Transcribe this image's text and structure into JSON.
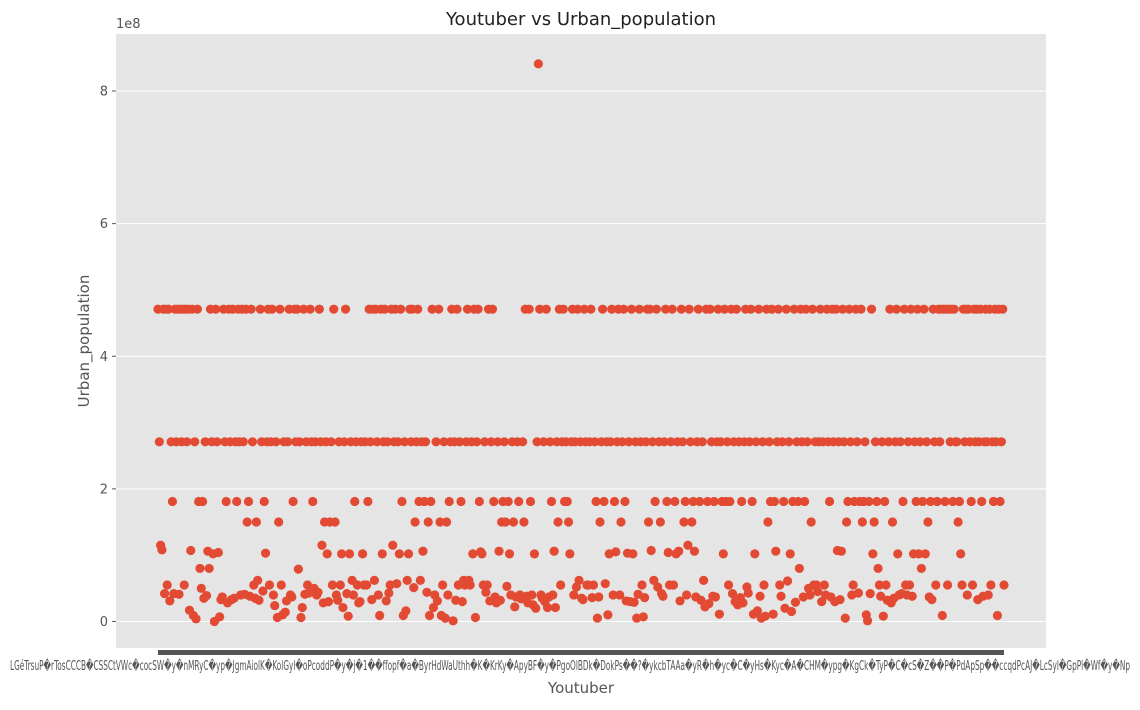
{
  "chart_data": {
    "type": "scatter",
    "title": "Youtuber vs Urban_population",
    "xlabel": "Youtuber",
    "ylabel": "Urban_population",
    "y_offset_label": "1e8",
    "y_scale_factor": 100000000,
    "ylim": [
      -40000000,
      886000000
    ],
    "yticks": [
      0,
      200000000,
      400000000,
      600000000,
      800000000
    ],
    "ytick_labels": [
      "0",
      "2",
      "4",
      "6",
      "8"
    ],
    "x_count": 995,
    "xtick_text": "LGéTrsuP�rTosCCCB�CSSCtVWc�cocSW�y�nMRyC�yp�JgmAiolK�KolGyl�oPcoddP�y�j�1��ffopf�a�ByrHdWaUthh�K�KrKy�ApyBF�y�PgoOlBDk�DokPs��?�ykcbTAAa�yR�h�yc�C�yHs�Kyc�A�CHM�ypg�KgCk�TyP�C�cS�Z��P�PdApSp��ccqdPcAJ�LcSyl�GpPl�Wf�y�Np",
    "grid": true,
    "color": "#E24A33",
    "y_values": [
      471000000,
      271000000,
      115000000,
      108000000,
      471000000,
      42000000,
      471000000,
      55000000,
      471000000,
      31000000,
      271000000,
      181000000,
      42000000,
      471000000,
      271000000,
      471000000,
      41000000,
      471000000,
      271000000,
      471000000,
      55000000,
      471000000,
      271000000,
      471000000,
      17000000,
      107000000,
      471000000,
      9000000,
      271000000,
      4000000,
      471000000,
      181000000,
      80000000,
      50000000,
      181000000,
      35000000,
      271000000,
      39000000,
      106000000,
      80000000,
      471000000,
      271000000,
      102000000,
      0,
      471000000,
      271000000,
      104000000,
      7000000,
      33000000,
      37000000,
      471000000,
      271000000,
      181000000,
      28000000,
      471000000,
      271000000,
      33000000,
      471000000,
      35000000,
      271000000,
      181000000,
      471000000,
      271000000,
      40000000,
      471000000,
      271000000,
      41000000,
      471000000,
      150000000,
      181000000,
      38000000,
      471000000,
      271000000,
      55000000,
      35000000,
      150000000,
      62000000,
      32000000,
      471000000,
      271000000,
      46000000,
      181000000,
      103000000,
      271000000,
      471000000,
      55000000,
      271000000,
      471000000,
      40000000,
      24000000,
      271000000,
      6000000,
      150000000,
      471000000,
      55000000,
      10000000,
      271000000,
      14000000,
      31000000,
      271000000,
      471000000,
      40000000,
      37000000,
      181000000,
      471000000,
      271000000,
      471000000,
      79000000,
      271000000,
      6000000,
      21000000,
      471000000,
      41000000,
      271000000,
      55000000,
      43000000,
      471000000,
      271000000,
      181000000,
      50000000,
      271000000,
      40000000,
      44000000,
      471000000,
      271000000,
      115000000,
      28000000,
      150000000,
      271000000,
      102000000,
      30000000,
      150000000,
      271000000,
      55000000,
      471000000,
      150000000,
      40000000,
      32000000,
      271000000,
      55000000,
      102000000,
      21000000,
      271000000,
      471000000,
      42000000,
      8000000,
      102000000,
      271000000,
      62000000,
      40000000,
      181000000,
      271000000,
      55000000,
      28000000,
      30000000,
      271000000,
      102000000,
      55000000,
      271000000,
      55000000,
      181000000,
      471000000,
      271000000,
      33000000,
      471000000,
      62000000,
      471000000,
      271000000,
      40000000,
      9000000,
      471000000,
      102000000,
      271000000,
      471000000,
      31000000,
      271000000,
      43000000,
      55000000,
      471000000,
      115000000,
      271000000,
      471000000,
      57000000,
      271000000,
      102000000,
      471000000,
      181000000,
      9000000,
      271000000,
      16000000,
      62000000,
      102000000,
      471000000,
      271000000,
      471000000,
      51000000,
      150000000,
      271000000,
      471000000,
      181000000,
      62000000,
      271000000,
      106000000,
      181000000,
      271000000,
      44000000,
      150000000,
      9000000,
      181000000,
      471000000,
      21000000,
      40000000,
      271000000,
      31000000,
      471000000,
      150000000,
      9000000,
      55000000,
      271000000,
      5000000,
      150000000,
      40000000,
      181000000,
      271000000,
      471000000,
      1000000,
      271000000,
      32000000,
      471000000,
      55000000,
      271000000,
      181000000,
      30000000,
      62000000,
      55000000,
      271000000,
      471000000,
      62000000,
      55000000,
      271000000,
      102000000,
      471000000,
      6000000,
      271000000,
      471000000,
      181000000,
      105000000,
      102000000,
      55000000,
      271000000,
      44000000,
      55000000,
      471000000,
      31000000,
      271000000,
      471000000,
      181000000,
      37000000,
      28000000,
      271000000,
      106000000,
      32000000,
      150000000,
      181000000,
      271000000,
      150000000,
      53000000,
      181000000,
      102000000,
      40000000,
      271000000,
      150000000,
      22000000,
      37000000,
      271000000,
      181000000,
      40000000,
      34000000,
      271000000,
      150000000,
      471000000,
      38000000,
      28000000,
      471000000,
      181000000,
      40000000,
      25000000,
      102000000,
      20000000,
      271000000,
      841000000,
      471000000,
      40000000,
      35000000,
      271000000,
      30000000,
      471000000,
      21000000,
      37000000,
      271000000,
      181000000,
      40000000,
      106000000,
      21000000,
      271000000,
      150000000,
      471000000,
      55000000,
      271000000,
      471000000,
      181000000,
      271000000,
      181000000,
      150000000,
      102000000,
      271000000,
      471000000,
      40000000,
      271000000,
      52000000,
      471000000,
      62000000,
      271000000,
      35000000,
      33000000,
      471000000,
      271000000,
      55000000,
      55000000,
      271000000,
      471000000,
      36000000,
      55000000,
      271000000,
      181000000,
      5000000,
      37000000,
      150000000,
      271000000,
      471000000,
      181000000,
      57000000,
      271000000,
      10000000,
      102000000,
      271000000,
      471000000,
      40000000,
      181000000,
      105000000,
      271000000,
      471000000,
      40000000,
      150000000,
      271000000,
      471000000,
      181000000,
      31000000,
      103000000,
      271000000,
      30000000,
      471000000,
      102000000,
      29000000,
      271000000,
      5000000,
      41000000,
      471000000,
      271000000,
      55000000,
      7000000,
      36000000,
      271000000,
      471000000,
      150000000,
      471000000,
      107000000,
      271000000,
      62000000,
      181000000,
      471000000,
      52000000,
      271000000,
      150000000,
      42000000,
      38000000,
      271000000,
      471000000,
      181000000,
      104000000,
      55000000,
      271000000,
      471000000,
      55000000,
      181000000,
      102000000,
      271000000,
      106000000,
      31000000,
      471000000,
      271000000,
      150000000,
      181000000,
      40000000,
      115000000,
      471000000,
      271000000,
      150000000,
      181000000,
      106000000,
      37000000,
      271000000,
      471000000,
      181000000,
      32000000,
      271000000,
      62000000,
      22000000,
      471000000,
      181000000,
      27000000,
      471000000,
      271000000,
      38000000,
      181000000,
      37000000,
      271000000,
      471000000,
      11000000,
      271000000,
      181000000,
      102000000,
      471000000,
      181000000,
      271000000,
      55000000,
      181000000,
      471000000,
      42000000,
      271000000,
      30000000,
      471000000,
      25000000,
      271000000,
      36000000,
      181000000,
      28000000,
      271000000,
      471000000,
      52000000,
      43000000,
      271000000,
      471000000,
      181000000,
      11000000,
      102000000,
      271000000,
      16000000,
      471000000,
      38000000,
      5000000,
      271000000,
      55000000,
      8000000,
      471000000,
      150000000,
      271000000,
      181000000,
      471000000,
      11000000,
      181000000,
      106000000,
      271000000,
      471000000,
      55000000,
      38000000,
      271000000,
      181000000,
      20000000,
      471000000,
      61000000,
      271000000,
      102000000,
      15000000,
      181000000,
      471000000,
      29000000,
      271000000,
      181000000,
      80000000,
      471000000,
      271000000,
      37000000,
      181000000,
      471000000,
      271000000,
      50000000,
      40000000,
      150000000,
      471000000,
      55000000,
      271000000,
      55000000,
      45000000,
      271000000,
      471000000,
      30000000,
      271000000,
      55000000,
      40000000,
      471000000,
      271000000,
      181000000,
      37000000,
      471000000,
      271000000,
      30000000,
      471000000,
      107000000,
      271000000,
      33000000,
      106000000,
      471000000,
      271000000,
      5000000,
      150000000,
      181000000,
      471000000,
      271000000,
      40000000,
      55000000,
      181000000,
      471000000,
      271000000,
      43000000,
      181000000,
      471000000,
      150000000,
      181000000,
      271000000,
      10000000,
      1000000,
      181000000,
      42000000,
      471000000,
      102000000,
      150000000,
      271000000,
      181000000,
      80000000,
      55000000,
      38000000,
      271000000,
      8000000,
      181000000,
      55000000,
      32000000,
      271000000,
      471000000,
      28000000,
      150000000,
      35000000,
      271000000,
      471000000,
      102000000,
      40000000,
      271000000,
      42000000,
      181000000,
      471000000,
      55000000,
      40000000,
      271000000,
      55000000,
      471000000,
      38000000,
      102000000,
      271000000,
      181000000,
      471000000,
      102000000,
      271000000,
      80000000,
      181000000,
      471000000,
      102000000,
      271000000,
      150000000,
      37000000,
      181000000,
      33000000,
      471000000,
      271000000,
      55000000,
      181000000,
      471000000,
      271000000,
      471000000,
      9000000,
      471000000,
      181000000,
      471000000,
      55000000,
      471000000,
      271000000,
      471000000,
      181000000,
      471000000,
      271000000,
      271000000,
      150000000,
      181000000,
      102000000,
      55000000,
      471000000,
      271000000,
      471000000,
      40000000,
      471000000,
      271000000,
      181000000,
      55000000,
      471000000,
      271000000,
      471000000,
      33000000,
      271000000,
      471000000,
      181000000,
      38000000,
      271000000,
      471000000,
      271000000,
      40000000,
      471000000,
      55000000,
      271000000,
      181000000,
      471000000,
      271000000,
      9000000,
      471000000,
      181000000,
      271000000,
      471000000,
      55000000
    ]
  }
}
